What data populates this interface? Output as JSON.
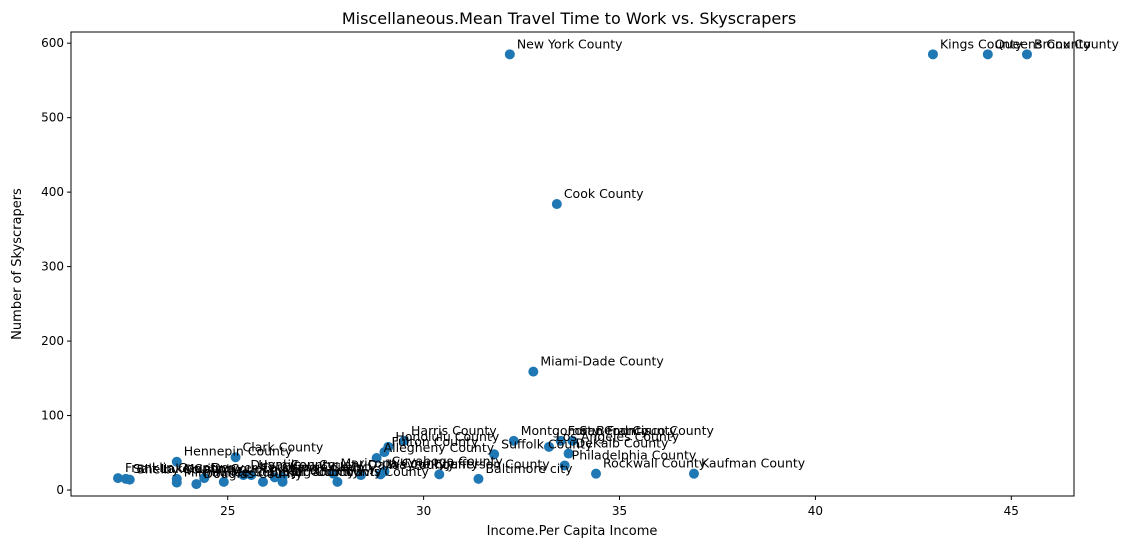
{
  "chart_data": {
    "type": "scatter",
    "title": "Miscellaneous.Mean Travel Time to Work vs. Skyscrapers",
    "xlabel": "Income.Per Capita Income",
    "ylabel": "Number of Skyscrapers",
    "xlim": [
      21.0,
      46.6
    ],
    "ylim": [
      -8,
      615
    ],
    "xticks": [
      25,
      30,
      35,
      40,
      45
    ],
    "yticks": [
      0,
      100,
      200,
      300,
      400,
      500,
      600
    ],
    "grid": false,
    "marker_color": "#1f77b4",
    "points": [
      {
        "label": "New York County",
        "x": 32.2,
        "y": 585
      },
      {
        "label": "Kings County",
        "x": 43.0,
        "y": 585
      },
      {
        "label": "Queens County",
        "x": 44.4,
        "y": 585
      },
      {
        "label": "Bronx County",
        "x": 45.4,
        "y": 585
      },
      {
        "label": "Cook County",
        "x": 33.4,
        "y": 384
      },
      {
        "label": "Miami-Dade County",
        "x": 32.8,
        "y": 159
      },
      {
        "label": "Harris County",
        "x": 29.5,
        "y": 66
      },
      {
        "label": "Montgomery County",
        "x": 32.3,
        "y": 66
      },
      {
        "label": "Fort Bend County",
        "x": 33.5,
        "y": 66
      },
      {
        "label": "San Francisco County",
        "x": 33.8,
        "y": 66
      },
      {
        "label": "Honolulu County",
        "x": 29.1,
        "y": 58
      },
      {
        "label": "Los Angeles County",
        "x": 33.2,
        "y": 58
      },
      {
        "label": "Fulton County",
        "x": 29.0,
        "y": 51
      },
      {
        "label": "DeKalb County",
        "x": 33.7,
        "y": 49
      },
      {
        "label": "Suffolk County",
        "x": 31.8,
        "y": 48
      },
      {
        "label": "Allegheny County",
        "x": 28.8,
        "y": 43
      },
      {
        "label": "Clark County",
        "x": 25.2,
        "y": 44
      },
      {
        "label": "Hennepin County",
        "x": 23.7,
        "y": 38
      },
      {
        "label": "Philadelphia County",
        "x": 33.6,
        "y": 33
      },
      {
        "label": "Rockwall County",
        "x": 34.4,
        "y": 22
      },
      {
        "label": "Kaufman County",
        "x": 36.9,
        "y": 22
      },
      {
        "label": "Baltimore city",
        "x": 31.4,
        "y": 15
      },
      {
        "label": "Jefferson County",
        "x": 30.4,
        "y": 21
      },
      {
        "label": "Cuyahoga County",
        "x": 29.0,
        "y": 25
      },
      {
        "label": "Wayne County",
        "x": 28.9,
        "y": 21
      },
      {
        "label": "Dallas County",
        "x": 28.4,
        "y": 20
      },
      {
        "label": "Travis County",
        "x": 27.8,
        "y": 11
      },
      {
        "label": "Tarrant County",
        "x": 26.4,
        "y": 11
      },
      {
        "label": "Orange County",
        "x": 26.2,
        "y": 17
      },
      {
        "label": "Bexar County",
        "x": 25.9,
        "y": 11
      },
      {
        "label": "Franklin County",
        "x": 22.2,
        "y": 16
      },
      {
        "label": "Salt Lake County",
        "x": 22.4,
        "y": 15
      },
      {
        "label": "Shelby County",
        "x": 22.5,
        "y": 14
      },
      {
        "label": "Marion County",
        "x": 23.7,
        "y": 15
      },
      {
        "label": "Milwaukee County",
        "x": 23.7,
        "y": 10
      },
      {
        "label": "Douglas County",
        "x": 24.2,
        "y": 8
      },
      {
        "label": "Denver County",
        "x": 24.4,
        "y": 16
      },
      {
        "label": "Mecklenburg County",
        "x": 24.9,
        "y": 11
      },
      {
        "label": "Duval County",
        "x": 25.4,
        "y": 20
      },
      {
        "label": "Hamilton County",
        "x": 25.6,
        "y": 20
      },
      {
        "label": "King County",
        "x": 26.4,
        "y": 17
      },
      {
        "label": "Maricopa County",
        "x": 27.7,
        "y": 22
      }
    ]
  }
}
